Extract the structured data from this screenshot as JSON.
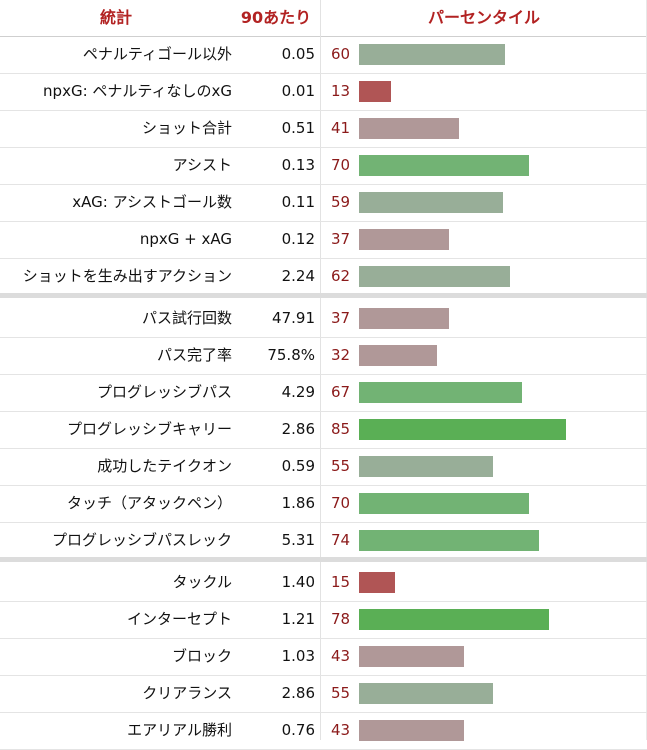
{
  "header": {
    "col_stat": "統計",
    "col_per90": "90あたり",
    "col_percentile": "パーセンタイル"
  },
  "colors": {
    "high": "#5aaf55",
    "mid_high": "#72b374",
    "neutral": "#98ae98",
    "mid_low": "#b09898",
    "low": "#b05555",
    "header_text": "#b22222",
    "percentile_text": "#8b1a1a"
  },
  "chart_data": {
    "type": "bar",
    "x_range": [
      0,
      99
    ],
    "groups": [
      {
        "rows": [
          {
            "stat": "ペナルティゴール以外",
            "per90": "0.05",
            "percentile": 60
          },
          {
            "stat": "npxG: ペナルティなしのxG",
            "per90": "0.01",
            "percentile": 13
          },
          {
            "stat": "ショット合計",
            "per90": "0.51",
            "percentile": 41
          },
          {
            "stat": "アシスト",
            "per90": "0.13",
            "percentile": 70
          },
          {
            "stat": "xAG: アシストゴール数",
            "per90": "0.11",
            "percentile": 59
          },
          {
            "stat": "npxG + xAG",
            "per90": "0.12",
            "percentile": 37
          },
          {
            "stat": "ショットを生み出すアクション",
            "per90": "2.24",
            "percentile": 62
          }
        ]
      },
      {
        "rows": [
          {
            "stat": "パス試行回数",
            "per90": "47.91",
            "percentile": 37
          },
          {
            "stat": "パス完了率",
            "per90": "75.8%",
            "percentile": 32
          },
          {
            "stat": "プログレッシブパス",
            "per90": "4.29",
            "percentile": 67
          },
          {
            "stat": "プログレッシブキャリー",
            "per90": "2.86",
            "percentile": 85
          },
          {
            "stat": "成功したテイクオン",
            "per90": "0.59",
            "percentile": 55
          },
          {
            "stat": "タッチ（アタックペン）",
            "per90": "1.86",
            "percentile": 70
          },
          {
            "stat": "プログレッシブパスレック",
            "per90": "5.31",
            "percentile": 74
          }
        ]
      },
      {
        "rows": [
          {
            "stat": "タックル",
            "per90": "1.40",
            "percentile": 15
          },
          {
            "stat": "インターセプト",
            "per90": "1.21",
            "percentile": 78
          },
          {
            "stat": "ブロック",
            "per90": "1.03",
            "percentile": 43
          },
          {
            "stat": "クリアランス",
            "per90": "2.86",
            "percentile": 55
          },
          {
            "stat": "エアリアル勝利",
            "per90": "0.76",
            "percentile": 43
          }
        ]
      }
    ]
  }
}
